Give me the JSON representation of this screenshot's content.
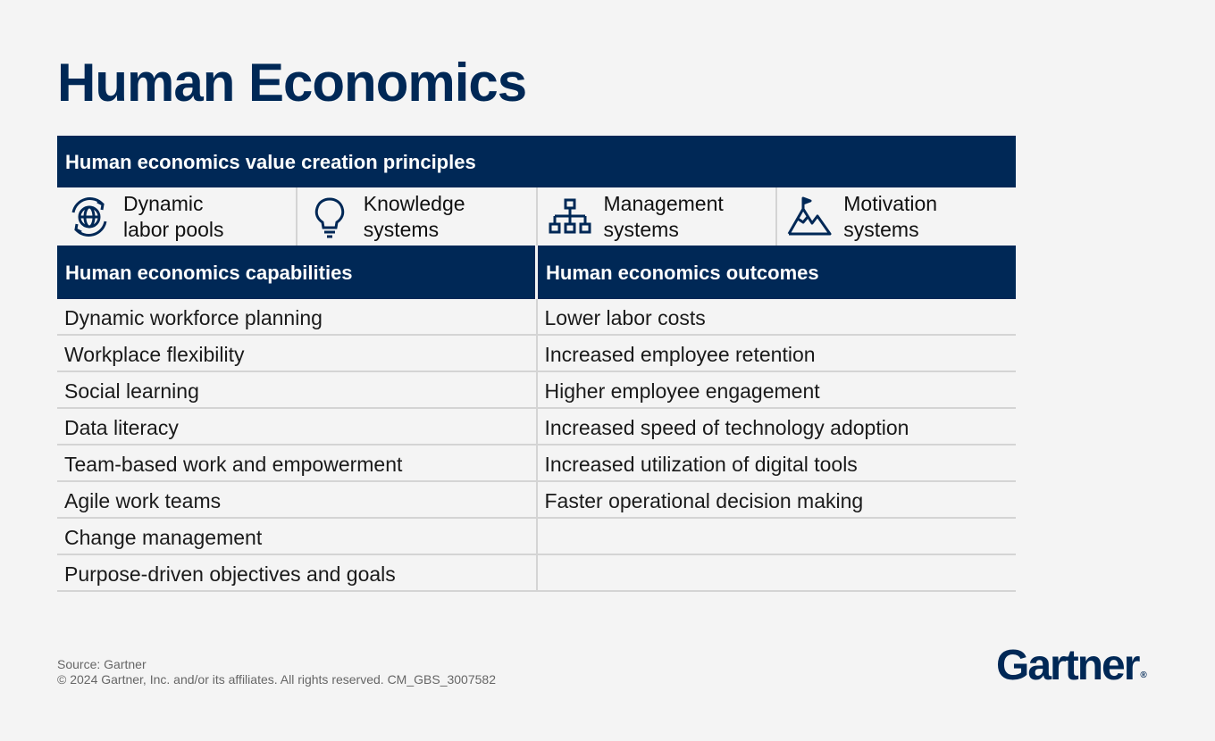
{
  "title": "Human Economics",
  "principles_header": "Human economics value creation principles",
  "principles": [
    {
      "icon": "globe-cycle-icon",
      "label": "Dynamic\nlabor pools"
    },
    {
      "icon": "lightbulb-icon",
      "label": "Knowledge\nsystems"
    },
    {
      "icon": "org-chart-icon",
      "label": "Management\nsystems"
    },
    {
      "icon": "mountain-flag-icon",
      "label": "Motivation\nsystems"
    }
  ],
  "capabilities_header": "Human economics capabilities",
  "outcomes_header": "Human economics outcomes",
  "capabilities": [
    "Dynamic workforce planning",
    "Workplace flexibility",
    "Social learning",
    "Data literacy",
    "Team-based work and empowerment",
    "Agile work teams",
    "Change management",
    "Purpose-driven objectives and goals"
  ],
  "outcomes": [
    "Lower labor costs",
    "Increased employee retention",
    "Higher employee engagement",
    "Increased speed of technology adoption",
    "Increased utilization of digital tools",
    "Faster operational decision making",
    "",
    ""
  ],
  "footer": {
    "source": "Source: Gartner",
    "copyright": "© 2024 Gartner, Inc. and/or its affiliates. All rights reserved. CM_GBS_3007582"
  },
  "logo": {
    "text": "Gartner",
    "mark": "®"
  },
  "colors": {
    "navy": "#002856",
    "background": "#f4f4f4",
    "divider": "#d4d4d4"
  }
}
